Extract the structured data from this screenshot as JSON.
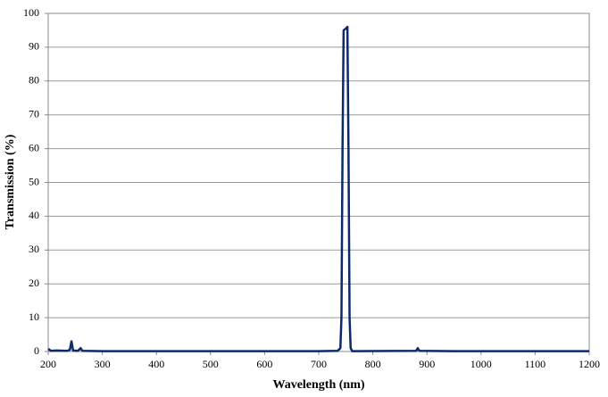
{
  "chart_data": {
    "type": "line",
    "x_label": "Wavelength (nm)",
    "y_label": "Transmission (%)",
    "x": [
      200,
      205,
      215,
      235,
      240,
      243,
      246,
      255,
      260,
      263,
      300,
      500,
      700,
      735,
      740,
      742,
      744,
      746,
      750,
      753,
      755,
      757,
      759,
      762,
      880,
      883,
      886,
      950,
      1200
    ],
    "series": [
      {
        "name": "Transmission",
        "color": "#0c2a6b",
        "values": [
          0.8,
          0.2,
          0.3,
          0.2,
          0.5,
          3,
          0.3,
          0.2,
          1,
          0.2,
          0.1,
          0.1,
          0.1,
          0.2,
          1,
          10,
          60,
          95,
          95.5,
          96,
          60,
          10,
          1,
          0.1,
          0.2,
          1,
          0.2,
          0.1,
          0.1
        ]
      }
    ],
    "xlim": [
      200,
      1200
    ],
    "xticks": [
      200,
      300,
      400,
      500,
      600,
      700,
      800,
      900,
      1000,
      1100,
      1200
    ],
    "ylim": [
      0,
      100
    ],
    "yticks": [
      0,
      10,
      20,
      30,
      40,
      50,
      60,
      70,
      80,
      90,
      100
    ],
    "grid": true
  }
}
